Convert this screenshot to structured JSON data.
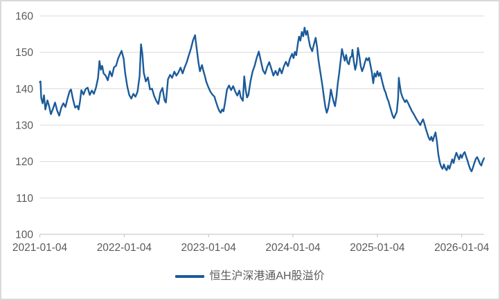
{
  "chart_data": {
    "type": "line",
    "title": "",
    "legend_position": "bottom-center",
    "grid": "horizontal",
    "style": {
      "line_color": "#1B5A99",
      "grid_color": "#D9D9D9",
      "axis_color": "#BFBFBF",
      "label_color": "#595959",
      "background": "#FFFFFF",
      "frame_border": "#D9D9D9"
    },
    "y_axis": {
      "min": 100,
      "max": 160,
      "tick_step": 10,
      "tick_labels": [
        "100",
        "110",
        "120",
        "130",
        "140",
        "150",
        "160"
      ]
    },
    "x_axis": {
      "unit": "days since 2021-01-04",
      "range_days": [
        0,
        1923
      ],
      "tick_interval_days": 365.25,
      "tick_labels": [
        "2021-01-04",
        "2022-01-04",
        "2023-01-04",
        "2024-01-04",
        "2025-01-04",
        "2026-01-04"
      ]
    },
    "series": [
      {
        "name": "恒生沪深港通AH股溢价",
        "color": "#1B5A99",
        "points": [
          [
            0,
            141.8
          ],
          [
            3,
            142.0
          ],
          [
            6,
            137.5
          ],
          [
            12,
            136.0
          ],
          [
            18,
            138.2
          ],
          [
            24,
            134.3
          ],
          [
            33,
            136.8
          ],
          [
            39,
            135.5
          ],
          [
            48,
            133.0
          ],
          [
            57,
            134.5
          ],
          [
            66,
            136.2
          ],
          [
            75,
            134.0
          ],
          [
            84,
            132.6
          ],
          [
            93,
            134.8
          ],
          [
            102,
            136.0
          ],
          [
            111,
            135.0
          ],
          [
            120,
            137.3
          ],
          [
            129,
            139.3
          ],
          [
            135,
            139.8
          ],
          [
            144,
            137.0
          ],
          [
            153,
            134.8
          ],
          [
            162,
            135.3
          ],
          [
            168,
            134.3
          ],
          [
            174,
            136.5
          ],
          [
            180,
            139.6
          ],
          [
            189,
            138.4
          ],
          [
            198,
            139.9
          ],
          [
            207,
            140.3
          ],
          [
            216,
            138.3
          ],
          [
            225,
            139.5
          ],
          [
            234,
            138.6
          ],
          [
            243,
            140.3
          ],
          [
            252,
            143.0
          ],
          [
            258,
            147.6
          ],
          [
            264,
            145.2
          ],
          [
            270,
            146.3
          ],
          [
            276,
            144.2
          ],
          [
            285,
            143.6
          ],
          [
            294,
            142.3
          ],
          [
            303,
            144.8
          ],
          [
            312,
            143.4
          ],
          [
            321,
            145.9
          ],
          [
            330,
            146.3
          ],
          [
            339,
            148.3
          ],
          [
            348,
            149.6
          ],
          [
            354,
            150.4
          ],
          [
            363,
            148.2
          ],
          [
            369,
            144.5
          ],
          [
            378,
            140.8
          ],
          [
            387,
            138.3
          ],
          [
            396,
            137.3
          ],
          [
            405,
            138.6
          ],
          [
            414,
            137.8
          ],
          [
            423,
            139.2
          ],
          [
            432,
            143.5
          ],
          [
            438,
            152.2
          ],
          [
            444,
            149.5
          ],
          [
            450,
            144.4
          ],
          [
            459,
            142.0
          ],
          [
            468,
            143.1
          ],
          [
            477,
            139.8
          ],
          [
            486,
            140.0
          ],
          [
            495,
            138.0
          ],
          [
            504,
            136.7
          ],
          [
            513,
            135.8
          ],
          [
            522,
            139.0
          ],
          [
            531,
            140.2
          ],
          [
            540,
            136.8
          ],
          [
            546,
            136.2
          ],
          [
            555,
            142.6
          ],
          [
            564,
            143.8
          ],
          [
            573,
            143.0
          ],
          [
            582,
            144.7
          ],
          [
            591,
            143.6
          ],
          [
            600,
            144.5
          ],
          [
            609,
            145.8
          ],
          [
            618,
            144.2
          ],
          [
            627,
            145.9
          ],
          [
            636,
            147.3
          ],
          [
            645,
            149.2
          ],
          [
            654,
            151.0
          ],
          [
            663,
            153.3
          ],
          [
            672,
            154.7
          ],
          [
            675,
            153.0
          ],
          [
            681,
            150.0
          ],
          [
            687,
            147.0
          ],
          [
            693,
            144.8
          ],
          [
            702,
            146.5
          ],
          [
            708,
            144.9
          ],
          [
            714,
            143.6
          ],
          [
            720,
            142.0
          ],
          [
            729,
            140.5
          ],
          [
            738,
            139.2
          ],
          [
            747,
            138.4
          ],
          [
            756,
            137.8
          ],
          [
            762,
            136.5
          ],
          [
            771,
            134.8
          ],
          [
            777,
            133.9
          ],
          [
            783,
            133.4
          ],
          [
            789,
            134.3
          ],
          [
            795,
            133.8
          ],
          [
            801,
            135.9
          ],
          [
            810,
            139.7
          ],
          [
            819,
            140.9
          ],
          [
            828,
            139.6
          ],
          [
            837,
            140.7
          ],
          [
            846,
            139.2
          ],
          [
            855,
            138.1
          ],
          [
            864,
            139.5
          ],
          [
            870,
            137.6
          ],
          [
            879,
            136.7
          ],
          [
            885,
            143.4
          ],
          [
            891,
            139.8
          ],
          [
            897,
            137.6
          ],
          [
            903,
            138.3
          ],
          [
            912,
            142.0
          ],
          [
            921,
            144.7
          ],
          [
            930,
            146.3
          ],
          [
            939,
            148.5
          ],
          [
            948,
            150.2
          ],
          [
            957,
            147.6
          ],
          [
            966,
            145.0
          ],
          [
            975,
            144.1
          ],
          [
            984,
            146.0
          ],
          [
            993,
            147.3
          ],
          [
            1002,
            145.5
          ],
          [
            1011,
            143.6
          ],
          [
            1020,
            144.9
          ],
          [
            1029,
            143.7
          ],
          [
            1038,
            145.6
          ],
          [
            1047,
            144.2
          ],
          [
            1056,
            146.1
          ],
          [
            1065,
            147.4
          ],
          [
            1074,
            146.2
          ],
          [
            1083,
            148.3
          ],
          [
            1092,
            149.6
          ],
          [
            1098,
            148.4
          ],
          [
            1104,
            150.1
          ],
          [
            1110,
            149.2
          ],
          [
            1116,
            152.0
          ],
          [
            1122,
            154.3
          ],
          [
            1128,
            153.2
          ],
          [
            1134,
            155.6
          ],
          [
            1140,
            154.4
          ],
          [
            1146,
            156.8
          ],
          [
            1152,
            154.8
          ],
          [
            1158,
            155.9
          ],
          [
            1164,
            153.5
          ],
          [
            1170,
            151.6
          ],
          [
            1179,
            150.3
          ],
          [
            1185,
            151.8
          ],
          [
            1194,
            154.0
          ],
          [
            1200,
            151.5
          ],
          [
            1206,
            148.0
          ],
          [
            1212,
            145.5
          ],
          [
            1218,
            143.0
          ],
          [
            1224,
            140.5
          ],
          [
            1230,
            137.6
          ],
          [
            1236,
            135.0
          ],
          [
            1242,
            133.4
          ],
          [
            1248,
            134.6
          ],
          [
            1254,
            136.8
          ],
          [
            1260,
            139.8
          ],
          [
            1266,
            138.0
          ],
          [
            1272,
            136.4
          ],
          [
            1278,
            135.2
          ],
          [
            1284,
            137.8
          ],
          [
            1290,
            141.5
          ],
          [
            1296,
            144.3
          ],
          [
            1302,
            147.6
          ],
          [
            1308,
            150.9
          ],
          [
            1314,
            149.2
          ],
          [
            1320,
            147.7
          ],
          [
            1326,
            149.3
          ],
          [
            1332,
            147.2
          ],
          [
            1338,
            146.7
          ],
          [
            1344,
            148.6
          ],
          [
            1350,
            148.9
          ],
          [
            1353,
            150.7
          ],
          [
            1359,
            147.5
          ],
          [
            1365,
            145.2
          ],
          [
            1371,
            146.8
          ],
          [
            1377,
            151.2
          ],
          [
            1383,
            149.0
          ],
          [
            1389,
            146.2
          ],
          [
            1395,
            144.8
          ],
          [
            1401,
            145.8
          ],
          [
            1407,
            147.2
          ],
          [
            1413,
            148.4
          ],
          [
            1419,
            147.8
          ],
          [
            1425,
            148.5
          ],
          [
            1431,
            146.5
          ],
          [
            1437,
            144.6
          ],
          [
            1443,
            141.5
          ],
          [
            1449,
            144.2
          ],
          [
            1455,
            143.3
          ],
          [
            1461,
            144.8
          ],
          [
            1467,
            143.5
          ],
          [
            1473,
            144.4
          ],
          [
            1479,
            142.8
          ],
          [
            1485,
            141.2
          ],
          [
            1491,
            139.8
          ],
          [
            1497,
            138.9
          ],
          [
            1503,
            137.5
          ],
          [
            1509,
            136.6
          ],
          [
            1515,
            135.2
          ],
          [
            1521,
            133.9
          ],
          [
            1527,
            132.6
          ],
          [
            1533,
            131.9
          ],
          [
            1539,
            132.8
          ],
          [
            1545,
            133.6
          ],
          [
            1551,
            137.5
          ],
          [
            1554,
            143.0
          ],
          [
            1557,
            141.5
          ],
          [
            1563,
            139.0
          ],
          [
            1569,
            137.8
          ],
          [
            1575,
            137.0
          ],
          [
            1581,
            136.3
          ],
          [
            1587,
            136.9
          ],
          [
            1593,
            136.2
          ],
          [
            1599,
            135.4
          ],
          [
            1605,
            134.6
          ],
          [
            1611,
            133.8
          ],
          [
            1617,
            133.2
          ],
          [
            1623,
            132.5
          ],
          [
            1629,
            131.8
          ],
          [
            1635,
            131.2
          ],
          [
            1641,
            130.6
          ],
          [
            1647,
            130.0
          ],
          [
            1653,
            130.9
          ],
          [
            1659,
            131.6
          ],
          [
            1665,
            130.4
          ],
          [
            1671,
            129.0
          ],
          [
            1677,
            127.8
          ],
          [
            1683,
            126.6
          ],
          [
            1689,
            125.9
          ],
          [
            1695,
            126.8
          ],
          [
            1701,
            125.6
          ],
          [
            1707,
            126.9
          ],
          [
            1713,
            128.0
          ],
          [
            1719,
            125.5
          ],
          [
            1725,
            122.0
          ],
          [
            1731,
            119.8
          ],
          [
            1737,
            118.6
          ],
          [
            1743,
            118.0
          ],
          [
            1749,
            119.2
          ],
          [
            1755,
            118.1
          ],
          [
            1761,
            117.6
          ],
          [
            1767,
            118.9
          ],
          [
            1773,
            118.0
          ],
          [
            1779,
            119.3
          ],
          [
            1785,
            120.6
          ],
          [
            1791,
            119.6
          ],
          [
            1797,
            121.2
          ],
          [
            1803,
            122.4
          ],
          [
            1809,
            121.5
          ],
          [
            1815,
            120.6
          ],
          [
            1821,
            121.9
          ],
          [
            1827,
            121.0
          ],
          [
            1833,
            122.1
          ],
          [
            1839,
            122.6
          ],
          [
            1845,
            121.4
          ],
          [
            1851,
            120.3
          ],
          [
            1857,
            119.0
          ],
          [
            1863,
            117.9
          ],
          [
            1869,
            117.3
          ],
          [
            1875,
            118.4
          ],
          [
            1881,
            119.6
          ],
          [
            1887,
            120.7
          ],
          [
            1893,
            121.2
          ],
          [
            1899,
            120.4
          ],
          [
            1905,
            119.4
          ],
          [
            1911,
            118.9
          ],
          [
            1917,
            120.1
          ],
          [
            1923,
            120.9
          ]
        ]
      }
    ]
  },
  "legend": {
    "label": "恒生沪深港通AH股溢价"
  }
}
